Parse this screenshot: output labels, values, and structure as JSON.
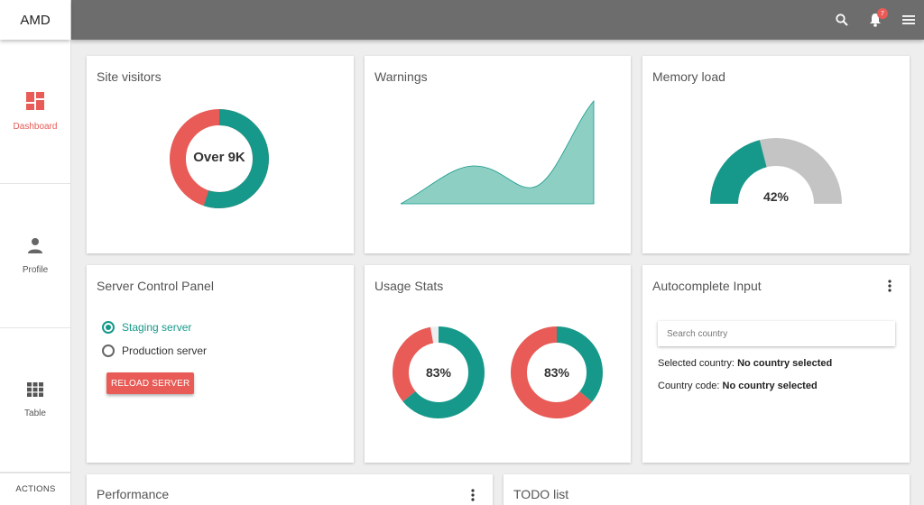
{
  "app": {
    "brand": "AMD"
  },
  "sidebar": {
    "items": [
      {
        "label": "Dashboard",
        "icon": "dashboard-icon",
        "active": true
      },
      {
        "label": "Profile",
        "icon": "person-icon",
        "active": false
      },
      {
        "label": "Table",
        "icon": "table-grid-icon",
        "active": false
      }
    ],
    "actions_label": "ACTIONS"
  },
  "topbar": {
    "icons": [
      "search-icon",
      "bell-icon",
      "menu-icon"
    ],
    "notification_count": "7"
  },
  "colors": {
    "teal": "#16998a",
    "red": "#e85b56",
    "teal_light": "#8ecfc4",
    "gray": "#c4c4c4",
    "topbar": "#6d6d6d"
  },
  "cards": {
    "site_visitors": {
      "title": "Site visitors",
      "center": "Over 9K",
      "teal_fraction": 0.55,
      "red_fraction": 0.45
    },
    "warnings": {
      "title": "Warnings"
    },
    "memory_load": {
      "title": "Memory load",
      "value": "42%",
      "fraction": 0.42
    },
    "server_panel": {
      "title": "Server Control Panel",
      "options": [
        {
          "label": "Staging server",
          "checked": true
        },
        {
          "label": "Production server",
          "checked": false
        }
      ],
      "button": "RELOAD SERVER"
    },
    "usage_stats": {
      "title": "Usage Stats",
      "gauges": [
        {
          "label": "83%",
          "teal_fraction": 0.64,
          "red_fraction": 0.33
        },
        {
          "label": "83%",
          "teal_fraction": 0.36,
          "red_fraction": 0.64
        }
      ]
    },
    "autocomplete": {
      "title": "Autocomplete Input",
      "placeholder": "Search country",
      "selected_country_label": "Selected country:",
      "selected_country_value": "No country selected",
      "country_code_label": "Country code:",
      "country_code_value": "No country selected"
    },
    "performance": {
      "title": "Performance"
    },
    "todo": {
      "title": "TODO list"
    }
  }
}
